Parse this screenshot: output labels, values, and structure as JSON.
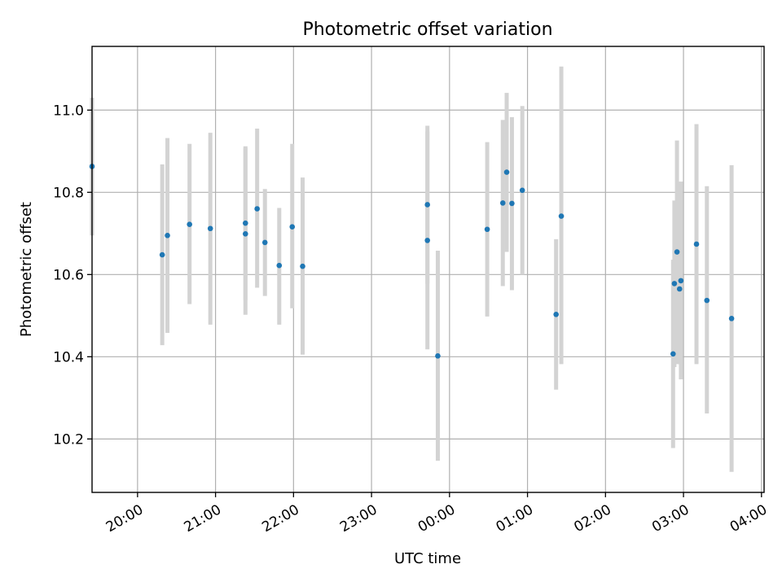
{
  "chart_data": {
    "type": "scatter",
    "title": "Photometric offset variation",
    "xlabel": "UTC time",
    "ylabel": "Photometric offset",
    "x_axis": "time",
    "xlim": [
      "19:25",
      "04:02"
    ],
    "ylim": [
      10.07,
      11.155
    ],
    "grid": true,
    "legend": "none",
    "x_ticks": [
      "20:00",
      "21:00",
      "22:00",
      "23:00",
      "00:00",
      "01:00",
      "02:00",
      "03:00",
      "04:00"
    ],
    "y_ticks": [
      10.2,
      10.4,
      10.6,
      10.8,
      11.0
    ],
    "y_tick_labels": [
      "10.2",
      "10.4",
      "10.6",
      "10.8",
      "11.0"
    ],
    "point_color": "#1f77b4",
    "errorbar_color": "#d3d3d3",
    "points": [
      {
        "x": "19:25",
        "y": 10.863,
        "ylo": 10.695,
        "yhi": 11.03
      },
      {
        "x": "20:19",
        "y": 10.648,
        "ylo": 10.428,
        "yhi": 10.868
      },
      {
        "x": "20:23",
        "y": 10.695,
        "ylo": 10.458,
        "yhi": 10.932
      },
      {
        "x": "20:40",
        "y": 10.722,
        "ylo": 10.528,
        "yhi": 10.918
      },
      {
        "x": "20:56",
        "y": 10.712,
        "ylo": 10.478,
        "yhi": 10.945
      },
      {
        "x": "21:23",
        "y": 10.699,
        "ylo": 10.502,
        "yhi": 10.912
      },
      {
        "x": "21:23",
        "y": 10.725,
        "ylo": 10.538,
        "yhi": 10.908
      },
      {
        "x": "21:32",
        "y": 10.76,
        "ylo": 10.568,
        "yhi": 10.955
      },
      {
        "x": "21:38",
        "y": 10.678,
        "ylo": 10.548,
        "yhi": 10.808
      },
      {
        "x": "21:49",
        "y": 10.622,
        "ylo": 10.478,
        "yhi": 10.762
      },
      {
        "x": "21:59",
        "y": 10.716,
        "ylo": 10.518,
        "yhi": 10.918
      },
      {
        "x": "22:07",
        "y": 10.62,
        "ylo": 10.405,
        "yhi": 10.836
      },
      {
        "x": "23:43",
        "y": 10.683,
        "ylo": 10.418,
        "yhi": 10.948
      },
      {
        "x": "23:43",
        "y": 10.77,
        "ylo": 10.578,
        "yhi": 10.962
      },
      {
        "x": "23:51",
        "y": 10.402,
        "ylo": 10.147,
        "yhi": 10.658
      },
      {
        "x": "00:29",
        "y": 10.71,
        "ylo": 10.498,
        "yhi": 10.922
      },
      {
        "x": "00:41",
        "y": 10.774,
        "ylo": 10.572,
        "yhi": 10.976
      },
      {
        "x": "00:44",
        "y": 10.849,
        "ylo": 10.655,
        "yhi": 11.042
      },
      {
        "x": "00:48",
        "y": 10.773,
        "ylo": 10.562,
        "yhi": 10.983
      },
      {
        "x": "00:56",
        "y": 10.805,
        "ylo": 10.6,
        "yhi": 11.01
      },
      {
        "x": "01:22",
        "y": 10.503,
        "ylo": 10.32,
        "yhi": 10.686
      },
      {
        "x": "01:26",
        "y": 10.742,
        "ylo": 10.382,
        "yhi": 11.106
      },
      {
        "x": "02:52",
        "y": 10.407,
        "ylo": 10.178,
        "yhi": 10.636
      },
      {
        "x": "02:53",
        "y": 10.578,
        "ylo": 10.375,
        "yhi": 10.78
      },
      {
        "x": "02:55",
        "y": 10.655,
        "ylo": 10.382,
        "yhi": 10.926
      },
      {
        "x": "02:57",
        "y": 10.565,
        "ylo": 10.382,
        "yhi": 10.748
      },
      {
        "x": "02:58",
        "y": 10.585,
        "ylo": 10.345,
        "yhi": 10.826
      },
      {
        "x": "03:10",
        "y": 10.674,
        "ylo": 10.382,
        "yhi": 10.966
      },
      {
        "x": "03:18",
        "y": 10.537,
        "ylo": 10.262,
        "yhi": 10.815
      },
      {
        "x": "03:37",
        "y": 10.493,
        "ylo": 10.12,
        "yhi": 10.866
      }
    ]
  }
}
